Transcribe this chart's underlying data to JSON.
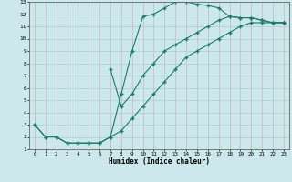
{
  "title": "",
  "xlabel": "Humidex (Indice chaleur)",
  "xlim": [
    -0.5,
    23.5
  ],
  "ylim": [
    1,
    13
  ],
  "xticks": [
    0,
    1,
    2,
    3,
    4,
    5,
    6,
    7,
    8,
    9,
    10,
    11,
    12,
    13,
    14,
    15,
    16,
    17,
    18,
    19,
    20,
    21,
    22,
    23
  ],
  "yticks": [
    1,
    2,
    3,
    4,
    5,
    6,
    7,
    8,
    9,
    10,
    11,
    12,
    13
  ],
  "bg_color": "#cde8ec",
  "grid_color": "#aacccc",
  "line_color": "#1a7a6e",
  "curve1_x": [
    0,
    1,
    2,
    3,
    4,
    5,
    6,
    7,
    8,
    9,
    10,
    11,
    12,
    13,
    14,
    15,
    16,
    17,
    18,
    19,
    20,
    21,
    22,
    23
  ],
  "curve1_y": [
    3.0,
    2.0,
    2.0,
    1.5,
    1.5,
    1.5,
    1.5,
    2.0,
    5.5,
    9.0,
    11.8,
    12.0,
    12.5,
    13.0,
    13.0,
    12.8,
    12.7,
    12.5,
    11.8,
    11.7,
    11.7,
    11.5,
    11.3,
    11.3
  ],
  "curve2_x": [
    0,
    1,
    2,
    3,
    4,
    5,
    6,
    7,
    8,
    9,
    10,
    11,
    12,
    13,
    14,
    15,
    16,
    17,
    18,
    19,
    20,
    21,
    22,
    23
  ],
  "curve2_y": [
    3.0,
    2.0,
    2.0,
    1.5,
    1.5,
    1.5,
    1.5,
    2.0,
    2.5,
    3.5,
    4.5,
    5.5,
    6.5,
    7.5,
    8.5,
    9.0,
    9.5,
    10.0,
    10.5,
    11.0,
    11.3,
    11.3,
    11.3,
    11.3
  ],
  "curve3_x": [
    7,
    8,
    9,
    10,
    11,
    12,
    13,
    14,
    15,
    16,
    17,
    18,
    19,
    20,
    21,
    22,
    23
  ],
  "curve3_y": [
    7.5,
    4.5,
    5.5,
    7.0,
    8.0,
    9.0,
    9.5,
    10.0,
    10.5,
    11.0,
    11.5,
    11.8,
    11.7,
    11.7,
    11.5,
    11.3,
    11.3
  ]
}
